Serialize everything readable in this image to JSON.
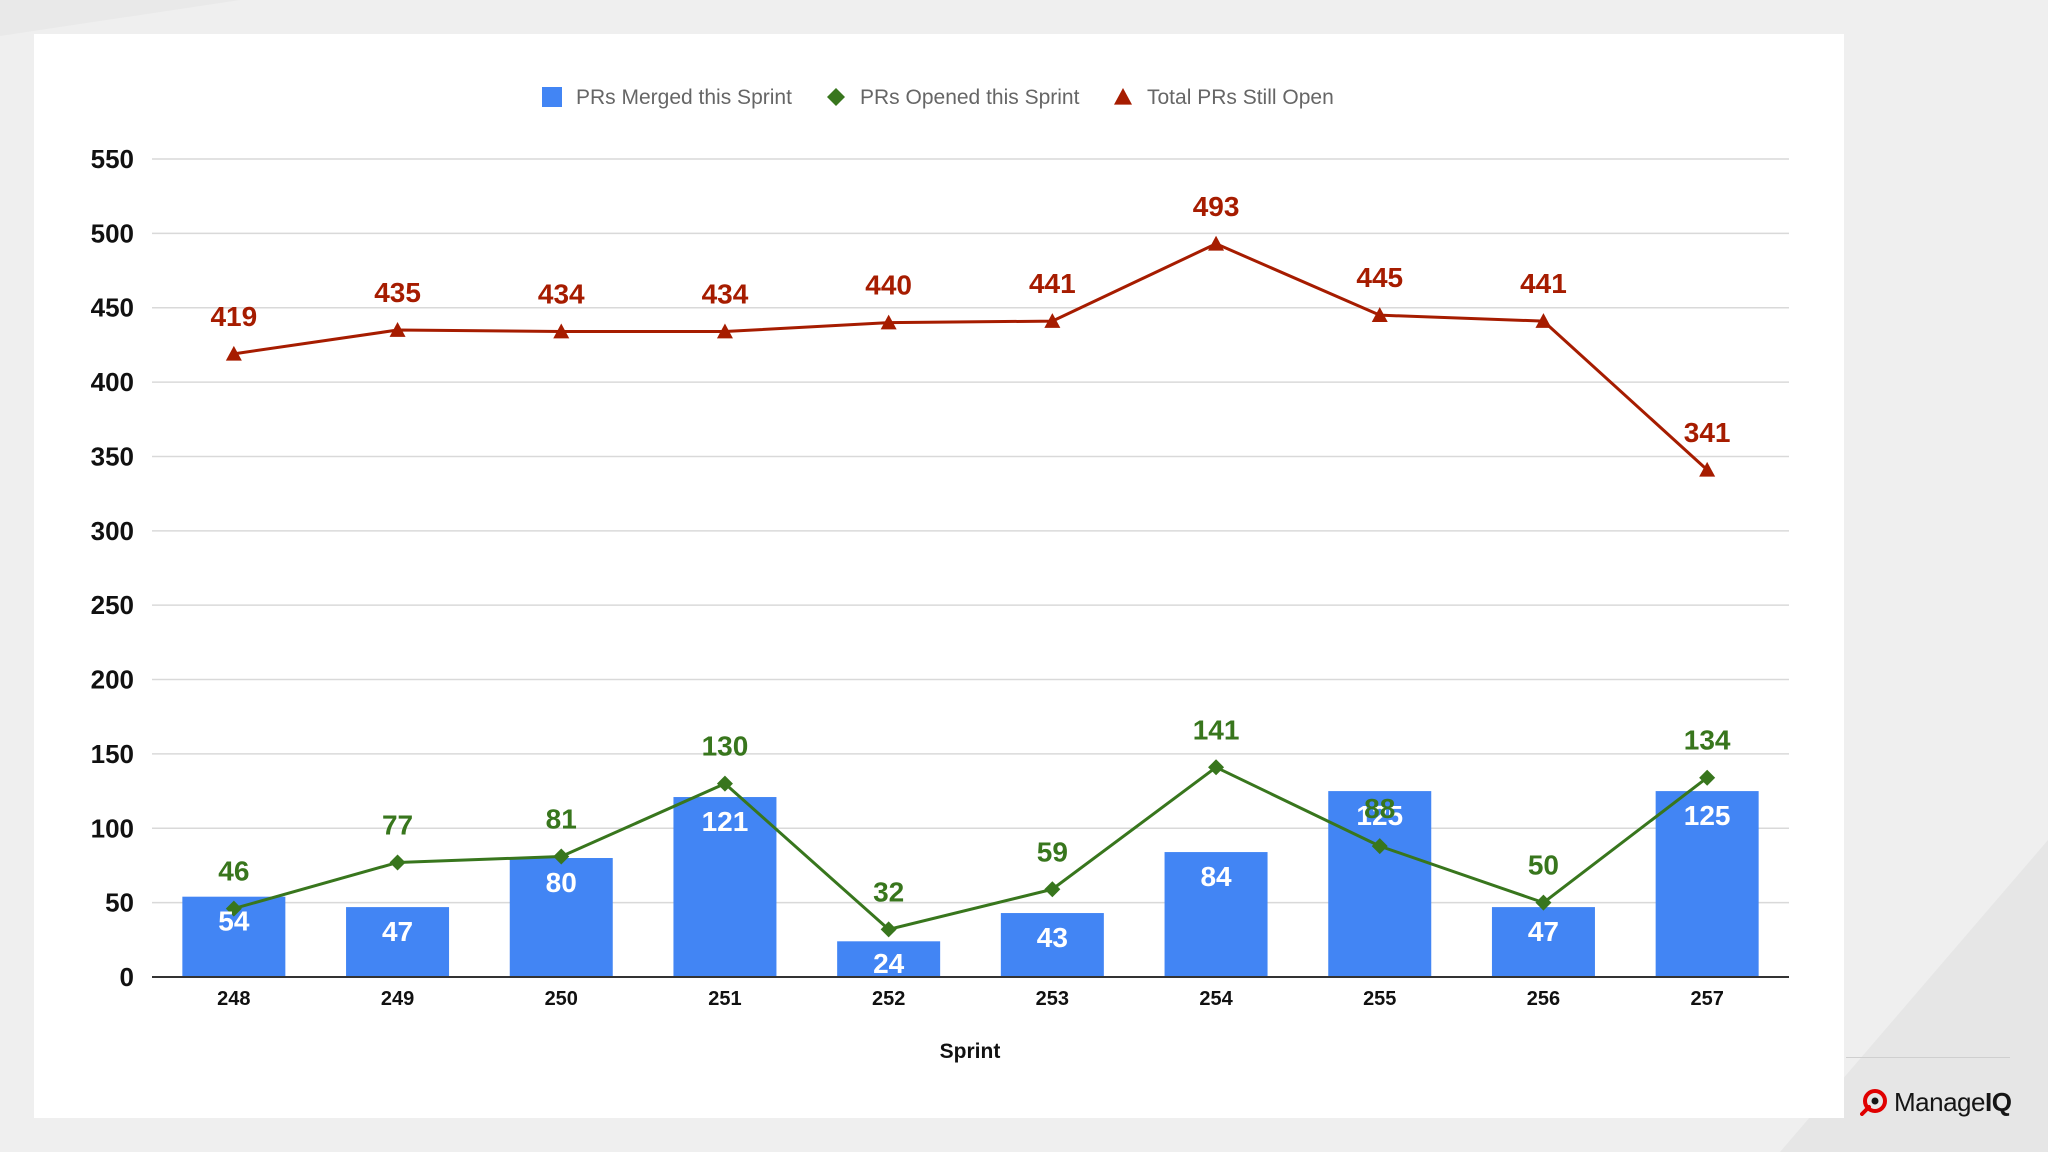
{
  "brand": {
    "name_prefix": "Manage",
    "name_suffix": "IQ"
  },
  "chart_data": {
    "type": "bar",
    "title": "",
    "xlabel": "Sprint",
    "ylabel": "",
    "categories": [
      "248",
      "249",
      "250",
      "251",
      "252",
      "253",
      "254",
      "255",
      "256",
      "257"
    ],
    "ylim": [
      0,
      550
    ],
    "yticks": [
      0,
      50,
      100,
      150,
      200,
      250,
      300,
      350,
      400,
      450,
      500,
      550
    ],
    "grid": true,
    "legend_position": "top-center",
    "series": [
      {
        "name": "PRs Merged this Sprint",
        "type": "bar",
        "marker": "square",
        "color": "#4285f4",
        "label_color": "#ffffff",
        "values": [
          54,
          47,
          80,
          121,
          24,
          43,
          84,
          125,
          47,
          125
        ]
      },
      {
        "name": "PRs Opened this Sprint",
        "type": "line",
        "marker": "diamond",
        "color": "#38761d",
        "label_color": "#38761d",
        "values": [
          46,
          77,
          81,
          130,
          32,
          59,
          141,
          88,
          50,
          134
        ]
      },
      {
        "name": "Total PRs Still Open",
        "type": "line",
        "marker": "triangle",
        "color": "#a61c00",
        "label_color": "#a61c00",
        "values": [
          419,
          435,
          434,
          434,
          440,
          441,
          493,
          445,
          441,
          341
        ]
      }
    ]
  }
}
